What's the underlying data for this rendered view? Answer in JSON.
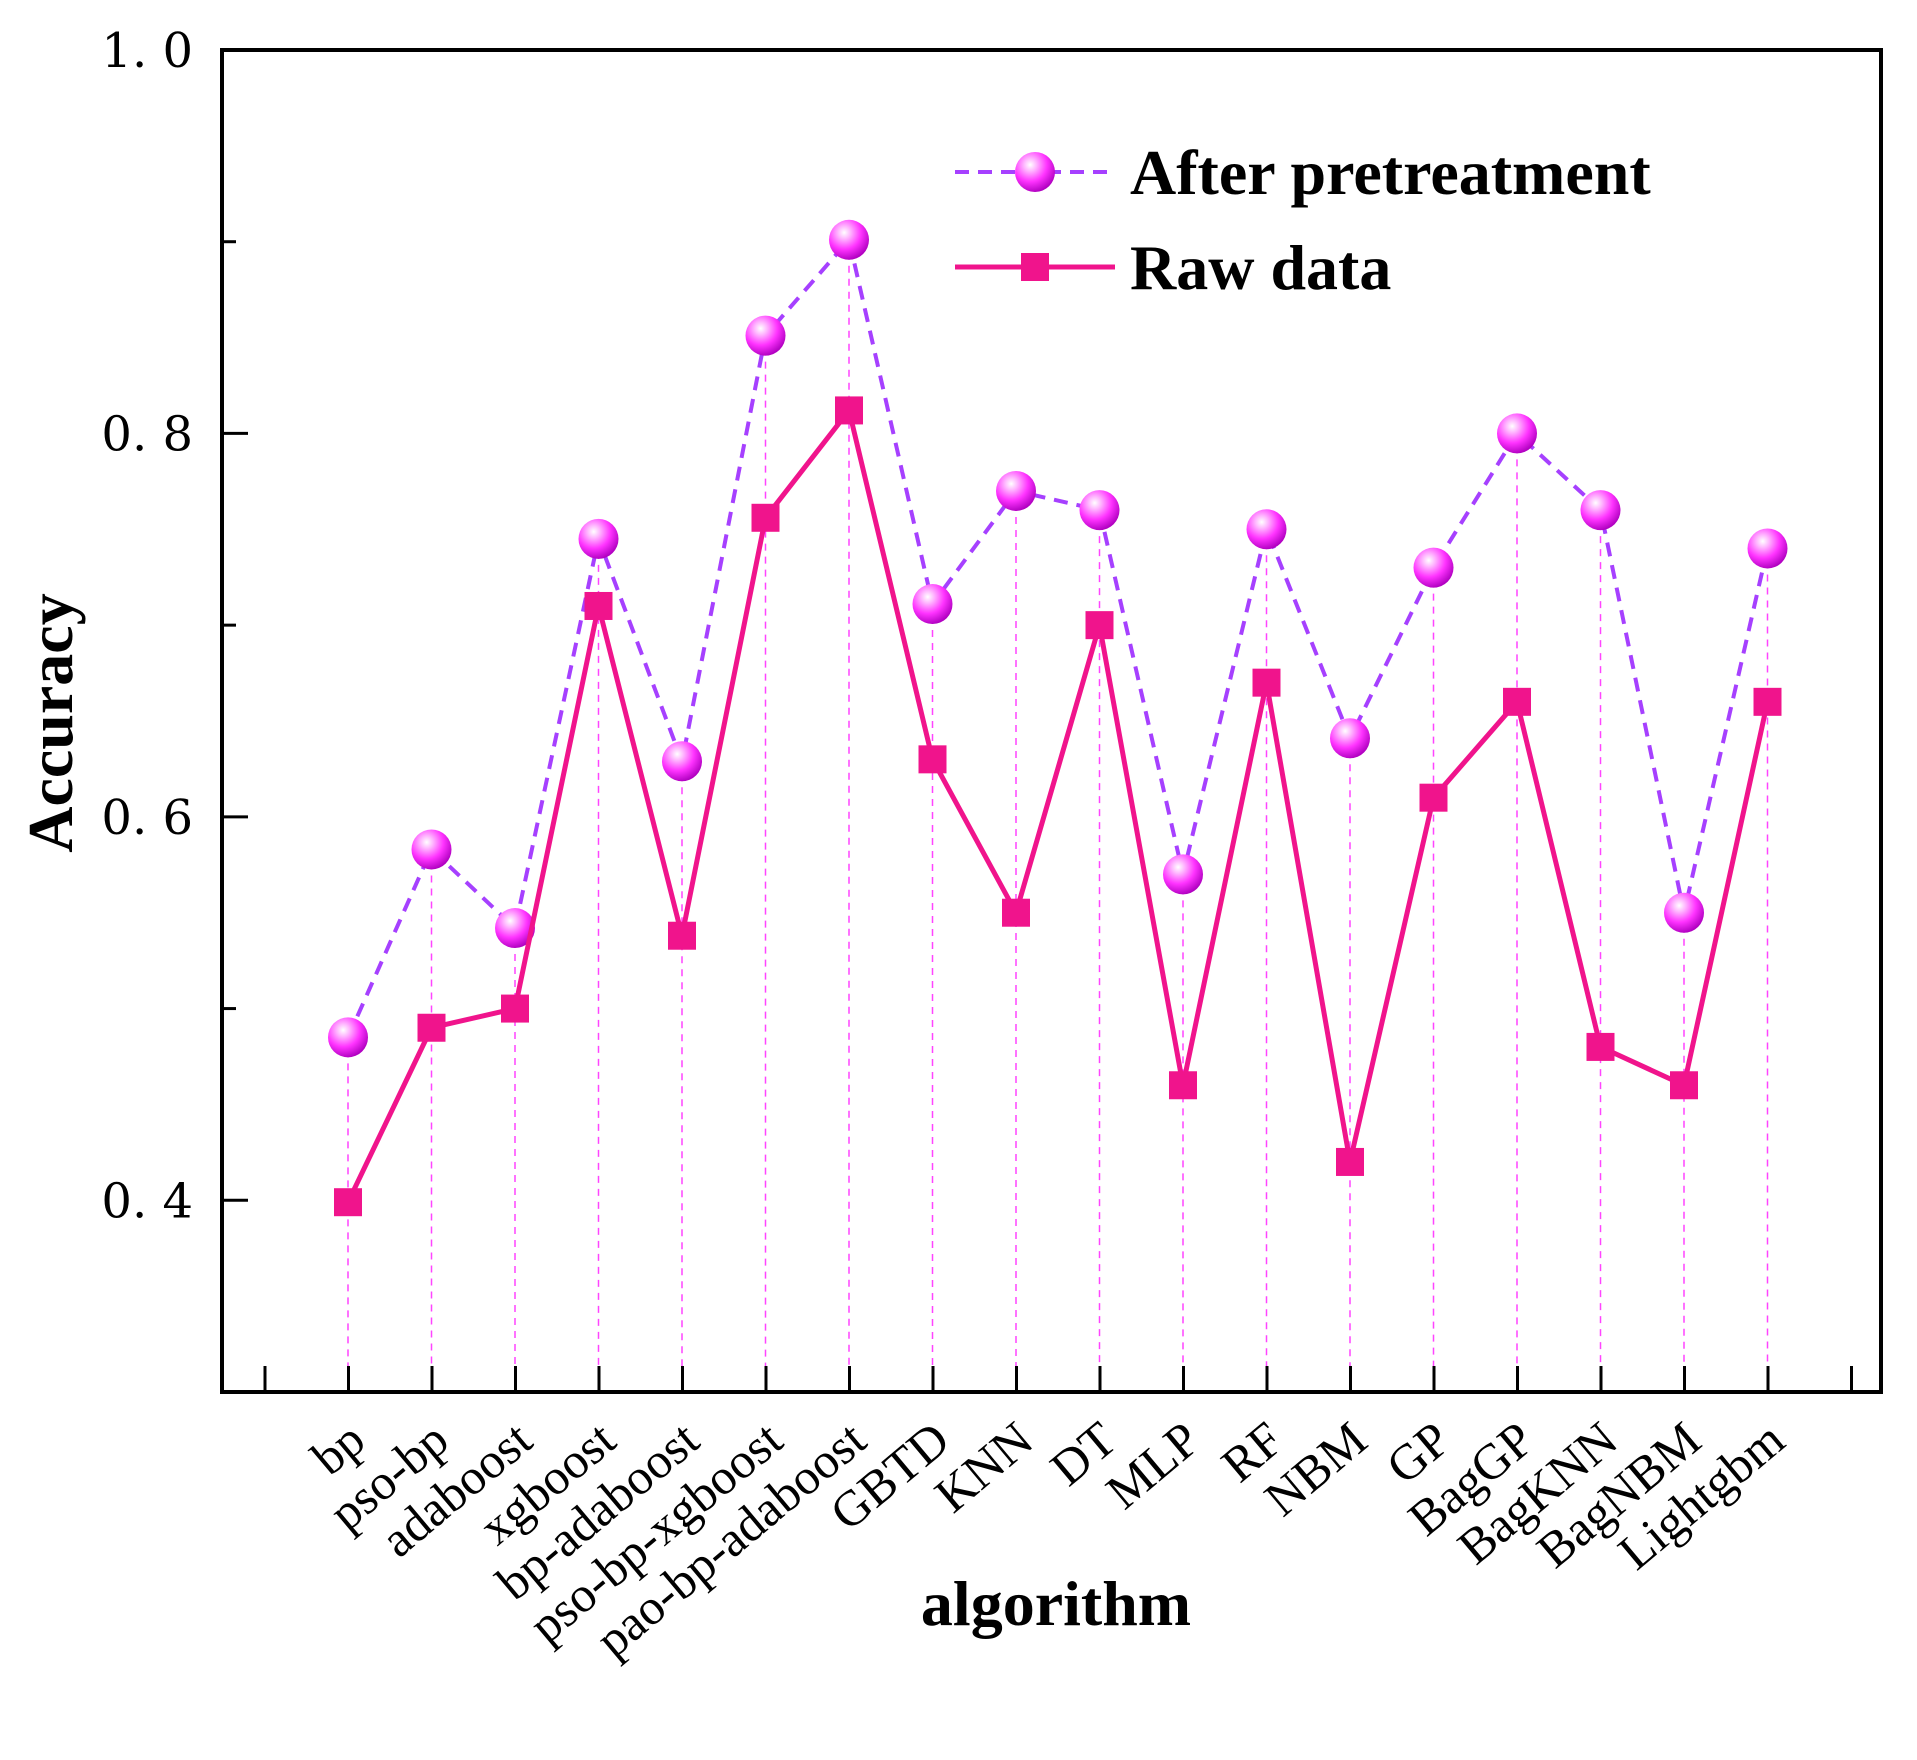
{
  "chart_data": {
    "type": "line",
    "title": "",
    "xlabel": "algorithm",
    "ylabel": "Accuracy",
    "ylim": [
      0.3,
      1.0
    ],
    "yticks": [
      0.4,
      0.6,
      0.8,
      1.0
    ],
    "ytick_labels": [
      "0. 4",
      "0. 6",
      "0. 8",
      "1. 0"
    ],
    "categories": [
      "bp",
      "pso-bp",
      "adaboost",
      "xgboost",
      "bp-adaboost",
      "pso-bp-xgboost",
      "pao-bp-adaboost",
      "GBTD",
      "KNN",
      "DT",
      "MLP",
      "RF",
      "NBM",
      "GP",
      "BagGP",
      "BagKNN",
      "BagNBM",
      "Lightgbm"
    ],
    "legend_position": "top-right",
    "series": [
      {
        "name": "After pretreatment",
        "color": "#a640ff",
        "marker": "sphere",
        "marker_color": "#ff33ff",
        "line_style": "dashed",
        "values": [
          0.485,
          0.583,
          0.542,
          0.745,
          0.629,
          0.851,
          0.901,
          0.711,
          0.77,
          0.76,
          0.57,
          0.75,
          0.641,
          0.73,
          0.8,
          0.76,
          0.55,
          0.74
        ]
      },
      {
        "name": "Raw data",
        "color": "#f0148c",
        "marker": "square",
        "marker_color": "#f0148c",
        "line_style": "solid",
        "values": [
          0.399,
          0.49,
          0.5,
          0.71,
          0.538,
          0.756,
          0.812,
          0.63,
          0.55,
          0.7,
          0.46,
          0.67,
          0.42,
          0.61,
          0.66,
          0.48,
          0.46,
          0.66
        ]
      }
    ]
  }
}
